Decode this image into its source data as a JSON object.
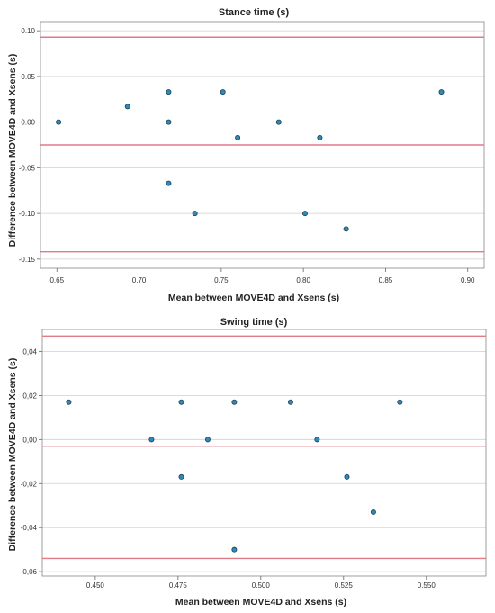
{
  "chart_data": [
    {
      "type": "scatter",
      "title": "Stance time (s)",
      "xlabel": "Mean between MOVE4D and Xsens (s)",
      "ylabel": "Difference between MOVE4D and Xsens (s)",
      "xlim": [
        0.64,
        0.91
      ],
      "ylim": [
        -0.16,
        0.11
      ],
      "x_ticks": [
        0.65,
        0.7,
        0.75,
        0.8,
        0.85,
        0.9
      ],
      "x_tick_labels": [
        "0.65",
        "0.70",
        "0.75",
        "0.80",
        "0.85",
        "0.90"
      ],
      "y_ticks": [
        0.1,
        0.05,
        0.0,
        -0.05,
        -0.1,
        -0.15
      ],
      "y_tick_labels": [
        "0.10",
        "0.05",
        "0.00",
        "-0.05",
        "-0.10",
        "-0.15"
      ],
      "grid": true,
      "reference_lines": [
        0.093,
        -0.025,
        -0.142
      ],
      "series": [
        {
          "x": [
            0.651,
            0.693,
            0.718,
            0.718,
            0.718,
            0.734,
            0.751,
            0.76,
            0.785,
            0.801,
            0.81,
            0.826,
            0.884
          ],
          "y": [
            0.0,
            0.017,
            0.033,
            0.0,
            -0.067,
            -0.1,
            0.033,
            -0.017,
            0.0,
            -0.1,
            -0.017,
            -0.117,
            0.033
          ]
        }
      ]
    },
    {
      "type": "scatter",
      "title": "Swing time (s)",
      "xlabel": "Mean between MOVE4D and Xsens (s)",
      "ylabel": "Difference between MOVE4D and Xsens (s)",
      "xlim": [
        0.434,
        0.568
      ],
      "ylim": [
        -0.062,
        0.05
      ],
      "x_ticks": [
        0.45,
        0.475,
        0.5,
        0.525,
        0.55
      ],
      "x_tick_labels": [
        "0.450",
        "0.475",
        "0.500",
        "0.525",
        "0.550"
      ],
      "y_ticks": [
        0.04,
        0.02,
        0.0,
        -0.02,
        -0.04,
        -0.06
      ],
      "y_tick_labels": [
        "0,04",
        "0,02",
        "0,00",
        "-0,02",
        "-0,04",
        "-0,06"
      ],
      "grid": true,
      "reference_lines": [
        0.047,
        -0.003,
        -0.054
      ],
      "series": [
        {
          "x": [
            0.442,
            0.467,
            0.476,
            0.476,
            0.484,
            0.492,
            0.492,
            0.509,
            0.517,
            0.526,
            0.534,
            0.542
          ],
          "y": [
            0.017,
            0.0,
            0.017,
            -0.017,
            0.0,
            0.017,
            -0.05,
            0.017,
            0.0,
            -0.017,
            -0.033,
            0.017
          ]
        }
      ]
    }
  ],
  "colors": {
    "point_fill": "#2f8bb5",
    "point_stroke": "#1f3f5a",
    "reference_line": "#e07a88",
    "gridline": "#cfcfcf",
    "frame": "#888888"
  }
}
